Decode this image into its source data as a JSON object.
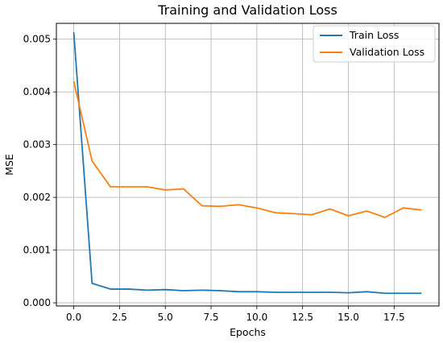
{
  "chart_data": {
    "type": "line",
    "title": "Training and Validation Loss",
    "xlabel": "Epochs",
    "ylabel": "MSE",
    "xlim": [
      -0.95,
      19.95
    ],
    "ylim": [
      -6e-05,
      0.0053
    ],
    "xticks": [
      0.0,
      2.5,
      5.0,
      7.5,
      10.0,
      12.5,
      15.0,
      17.5
    ],
    "xtick_labels": [
      "0.0",
      "2.5",
      "5.0",
      "7.5",
      "10.0",
      "12.5",
      "15.0",
      "17.5"
    ],
    "yticks": [
      0.0,
      0.001,
      0.002,
      0.003,
      0.004,
      0.005
    ],
    "ytick_labels": [
      "0.000",
      "0.001",
      "0.002",
      "0.003",
      "0.004",
      "0.005"
    ],
    "grid": true,
    "legend_position": "top-right",
    "x": [
      0,
      1,
      2,
      3,
      4,
      5,
      6,
      7,
      8,
      9,
      10,
      11,
      12,
      13,
      14,
      15,
      16,
      17,
      18,
      19
    ],
    "series": [
      {
        "name": "Train Loss",
        "color": "#1f77b4",
        "values": [
          0.00513,
          0.00037,
          0.00026,
          0.00026,
          0.00024,
          0.00025,
          0.00023,
          0.00024,
          0.00023,
          0.00021,
          0.00021,
          0.0002,
          0.0002,
          0.0002,
          0.0002,
          0.00019,
          0.00021,
          0.00018,
          0.00018,
          0.00018
        ]
      },
      {
        "name": "Validation Loss",
        "color": "#ff7f0e",
        "values": [
          0.0042,
          0.00269,
          0.0022,
          0.0022,
          0.0022,
          0.00214,
          0.00216,
          0.00184,
          0.00183,
          0.00186,
          0.0018,
          0.00171,
          0.00169,
          0.00167,
          0.00178,
          0.00165,
          0.00174,
          0.00162,
          0.0018,
          0.00176
        ]
      }
    ]
  }
}
